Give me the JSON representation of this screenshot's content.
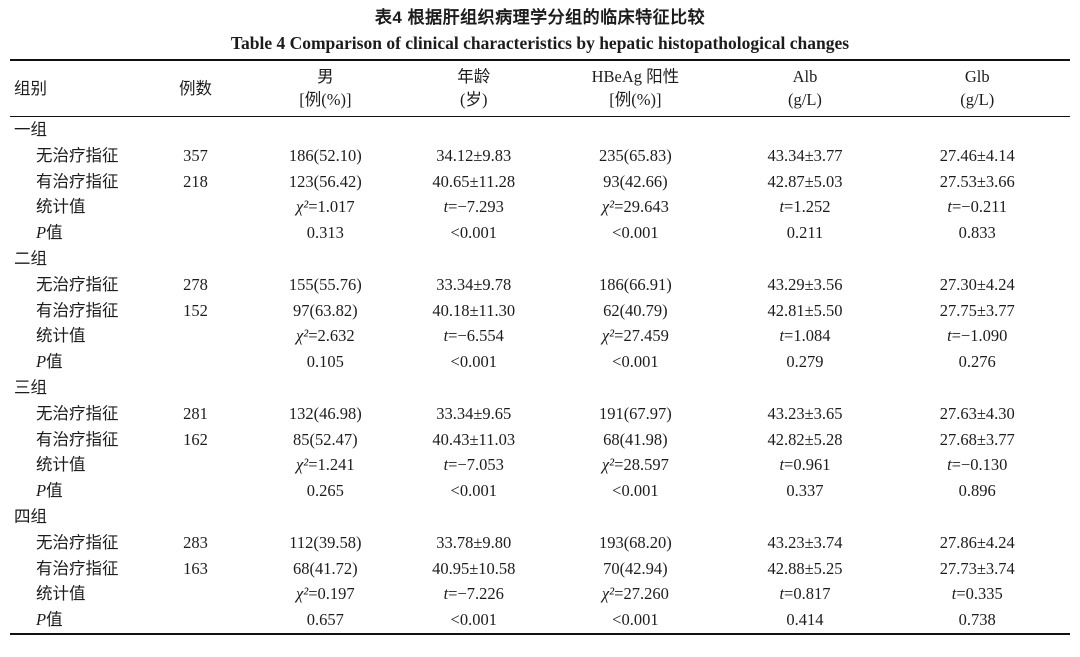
{
  "page": {
    "background": "#ffffff",
    "text_color": "#1c1c1c",
    "rule_color": "#111111"
  },
  "title_zh": "表4  根据肝组织病理学分组的临床特征比较",
  "title_en": "Table 4   Comparison of clinical characteristics by hepatic histopathological changes",
  "table": {
    "columns": [
      {
        "line1": "组别",
        "line2": ""
      },
      {
        "line1": "例数",
        "line2": ""
      },
      {
        "line1": "男",
        "line2": "[例(%)]"
      },
      {
        "line1": "年龄",
        "line2": "(岁)"
      },
      {
        "line1": "HBeAg 阳性",
        "line2": "[例(%)]"
      },
      {
        "line1": "Alb",
        "line2": "(g/L)"
      },
      {
        "line1": "Glb",
        "line2": "(g/L)"
      }
    ],
    "groups": [
      {
        "name": "一组",
        "rows": [
          [
            "无治疗指征",
            "357",
            "186(52.10)",
            "34.12±9.83",
            "235(65.83)",
            "43.34±3.77",
            "27.46±4.14"
          ],
          [
            "有治疗指征",
            "218",
            "123(56.42)",
            "40.65±11.28",
            "93(42.66)",
            "42.87±5.03",
            "27.53±3.66"
          ],
          [
            "统计值",
            "",
            "χ²=1.017",
            "t=−7.293",
            "χ²=29.643",
            "t=1.252",
            "t=−0.211"
          ],
          [
            "P值",
            "",
            "0.313",
            "<0.001",
            "<0.001",
            "0.211",
            "0.833"
          ]
        ]
      },
      {
        "name": "二组",
        "rows": [
          [
            "无治疗指征",
            "278",
            "155(55.76)",
            "33.34±9.78",
            "186(66.91)",
            "43.29±3.56",
            "27.30±4.24"
          ],
          [
            "有治疗指征",
            "152",
            "97(63.82)",
            "40.18±11.30",
            "62(40.79)",
            "42.81±5.50",
            "27.75±3.77"
          ],
          [
            "统计值",
            "",
            "χ²=2.632",
            "t=−6.554",
            "χ²=27.459",
            "t=1.084",
            "t=−1.090"
          ],
          [
            "P值",
            "",
            "0.105",
            "<0.001",
            "<0.001",
            "0.279",
            "0.276"
          ]
        ]
      },
      {
        "name": "三组",
        "rows": [
          [
            "无治疗指征",
            "281",
            "132(46.98)",
            "33.34±9.65",
            "191(67.97)",
            "43.23±3.65",
            "27.63±4.30"
          ],
          [
            "有治疗指征",
            "162",
            "85(52.47)",
            "40.43±11.03",
            "68(41.98)",
            "42.82±5.28",
            "27.68±3.77"
          ],
          [
            "统计值",
            "",
            "χ²=1.241",
            "t=−7.053",
            "χ²=28.597",
            "t=0.961",
            "t=−0.130"
          ],
          [
            "P值",
            "",
            "0.265",
            "<0.001",
            "<0.001",
            "0.337",
            "0.896"
          ]
        ]
      },
      {
        "name": "四组",
        "rows": [
          [
            "无治疗指征",
            "283",
            "112(39.58)",
            "33.78±9.80",
            "193(68.20)",
            "43.23±3.74",
            "27.86±4.24"
          ],
          [
            "有治疗指征",
            "163",
            "68(41.72)",
            "40.95±10.58",
            "70(42.94)",
            "42.88±5.25",
            "27.73±3.74"
          ],
          [
            "统计值",
            "",
            "χ²=0.197",
            "t=−7.226",
            "χ²=27.260",
            "t=0.817",
            "t=0.335"
          ],
          [
            "P值",
            "",
            "0.657",
            "<0.001",
            "<0.001",
            "0.414",
            "0.738"
          ]
        ]
      }
    ]
  }
}
